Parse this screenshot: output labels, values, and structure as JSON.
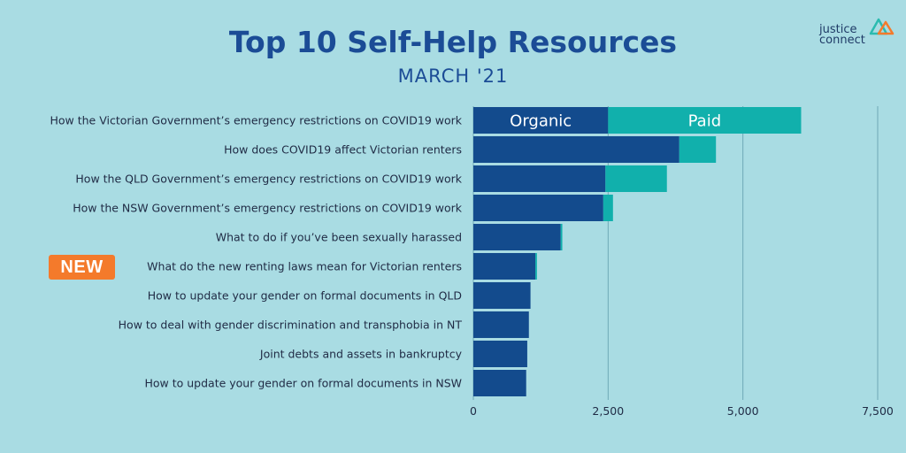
{
  "header": {
    "title": "Top 10 Self-Help Resources",
    "subtitle": "MARCH '21"
  },
  "logo": {
    "line1": "justice",
    "line2": "connect",
    "colors": [
      "#2bbbb0",
      "#f47a2b",
      "#1b4c96"
    ]
  },
  "badge": {
    "label": "NEW",
    "row_index": 5,
    "color": "#f47a2b"
  },
  "chart_data": {
    "type": "bar",
    "orientation": "horizontal",
    "stacked": true,
    "categories": [
      "How the Victorian Government’s emergency restrictions on COVID19 work",
      "How does COVID19 affect Victorian renters",
      "How the QLD Government’s emergency restrictions on COVID19 work",
      "How the NSW Government’s emergency restrictions on COVID19 work",
      "What to do if you’ve been sexually harassed",
      "What do the new renting laws mean for Victorian renters",
      "How to update your gender on formal documents in QLD",
      "How to deal with gender discrimination and transphobia in NT",
      "Joint debts and assets in bankruptcy",
      "How to update your gender on formal documents in NSW"
    ],
    "series": [
      {
        "name": "Organic",
        "color": "#134b8d",
        "values": [
          2500,
          3820,
          2450,
          2410,
          1620,
          1150,
          1060,
          1030,
          1000,
          980
        ]
      },
      {
        "name": "Paid",
        "color": "#11b0ac",
        "values": [
          3580,
          680,
          1140,
          180,
          30,
          30,
          0,
          0,
          0,
          0
        ]
      }
    ],
    "xlim": [
      0,
      7500
    ],
    "xticks": [
      0,
      2500,
      5000,
      7500
    ],
    "xtick_labels": [
      "0",
      "2,500",
      "5,000",
      "7,500"
    ],
    "grid": "vertical",
    "legend": "inside first bar"
  }
}
